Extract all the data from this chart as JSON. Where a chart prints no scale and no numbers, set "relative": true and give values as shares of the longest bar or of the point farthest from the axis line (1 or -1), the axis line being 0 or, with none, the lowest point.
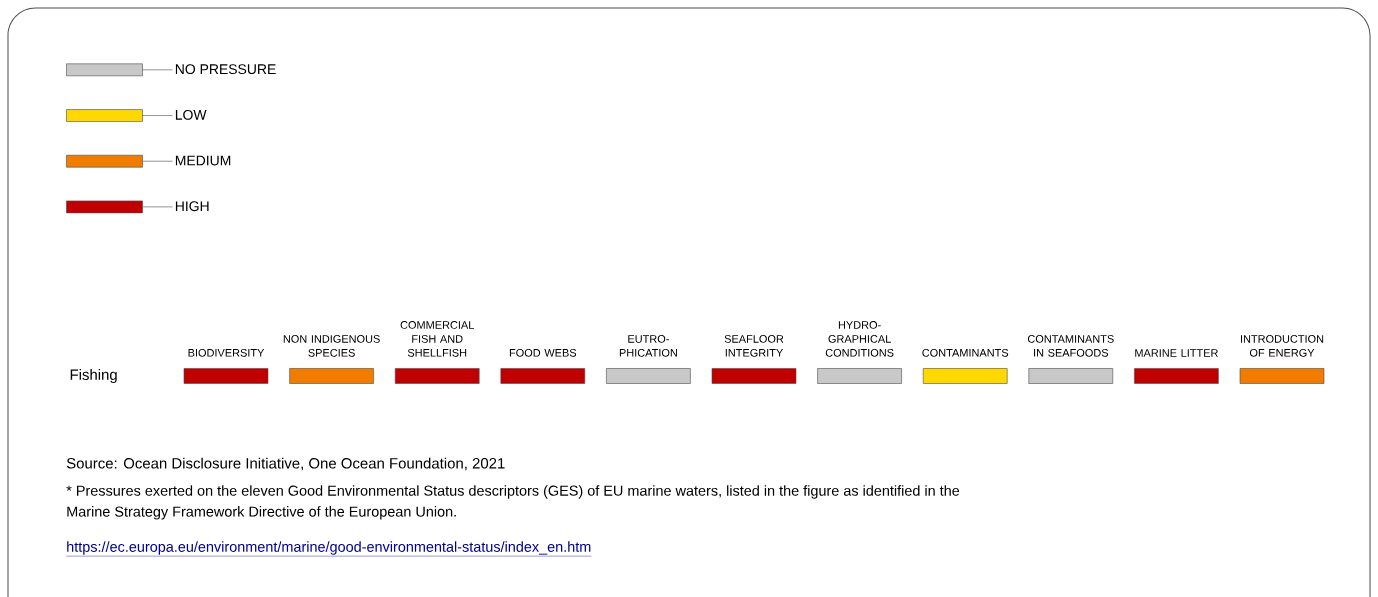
{
  "chart_data": {
    "type": "bar",
    "relative": true,
    "ylabel": "Fishing",
    "categories": [
      "BIODIVERSITY",
      "NON INDIGENOUS SPECIES",
      "COMMERCIAL FISH AND SHELLFISH",
      "FOOD WEBS",
      "EUTRO-PHICATION",
      "SEAFLOOR INTEGRITY",
      "HYDRO-GRAPHICAL CONDITIONS",
      "CONTAMINANTS",
      "CONTAMINANTS IN SEAFOODS",
      "MARINE LITTER",
      "INTRODUCTION OF ENERGY"
    ],
    "series": [
      {
        "name": "NO PRESSURE",
        "color": "#c8c8c8",
        "values": [
          null,
          null,
          null,
          null,
          1,
          null,
          1,
          null,
          1,
          null,
          null
        ]
      },
      {
        "name": "LOW",
        "color": "#ffd800",
        "values": [
          null,
          null,
          null,
          null,
          null,
          null,
          null,
          1,
          null,
          null,
          null
        ]
      },
      {
        "name": "MEDIUM",
        "color": "#f07d00",
        "values": [
          null,
          1,
          null,
          null,
          null,
          null,
          null,
          null,
          null,
          null,
          1
        ]
      },
      {
        "name": "HIGH",
        "color": "#c00000",
        "values": [
          1,
          null,
          1,
          1,
          null,
          1,
          null,
          null,
          null,
          1,
          null
        ]
      }
    ],
    "legend": "top left",
    "annotations": [
      "Source: Ocean Disclosure Initiative, One Ocean Foundation, 2021",
      "* Pressures exerted on the eleven Good Environmental Status descriptors (GES) of EU marine waters, listed in the figure as identified in the Marine Strategy Framework Directive of the European Union.",
      "https://ec.europa.eu/environment/marine/good-environmental-status/index_en.htm"
    ]
  }
}
